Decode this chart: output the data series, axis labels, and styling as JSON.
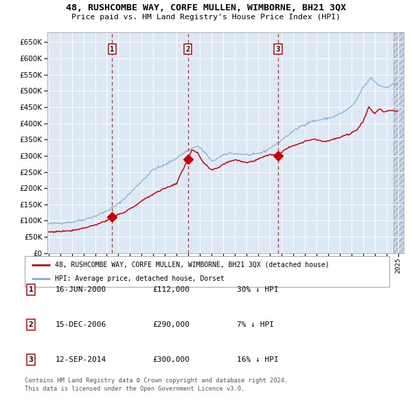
{
  "title": "48, RUSHCOMBE WAY, CORFE MULLEN, WIMBORNE, BH21 3QX",
  "subtitle": "Price paid vs. HM Land Registry's House Price Index (HPI)",
  "legend_line1": "48, RUSHCOMBE WAY, CORFE MULLEN, WIMBORNE, BH21 3QX (detached house)",
  "legend_line2": "HPI: Average price, detached house, Dorset",
  "footer_line1": "Contains HM Land Registry data © Crown copyright and database right 2024.",
  "footer_line2": "This data is licensed under the Open Government Licence v3.0.",
  "transactions": [
    {
      "num": 1,
      "date": "16-JUN-2000",
      "price": "£112,000",
      "hpi_diff": "30% ↓ HPI",
      "date_x": 2000.46,
      "price_y": 112000
    },
    {
      "num": 2,
      "date": "15-DEC-2006",
      "price": "£290,000",
      "hpi_diff": "7% ↓ HPI",
      "date_x": 2006.96,
      "price_y": 290000
    },
    {
      "num": 3,
      "date": "12-SEP-2014",
      "price": "£300,000",
      "hpi_diff": "16% ↓ HPI",
      "date_x": 2014.7,
      "price_y": 300000
    }
  ],
  "hpi_color": "#7bafd4",
  "price_color": "#cc0000",
  "dashed_color": "#cc0000",
  "plot_bg": "#dce9f5",
  "grid_color": "#ffffff",
  "ylim": [
    0,
    680000
  ],
  "yticks": [
    0,
    50000,
    100000,
    150000,
    200000,
    250000,
    300000,
    350000,
    400000,
    450000,
    500000,
    550000,
    600000,
    650000
  ],
  "xlim_start": 1994.9,
  "xlim_end": 2025.5
}
